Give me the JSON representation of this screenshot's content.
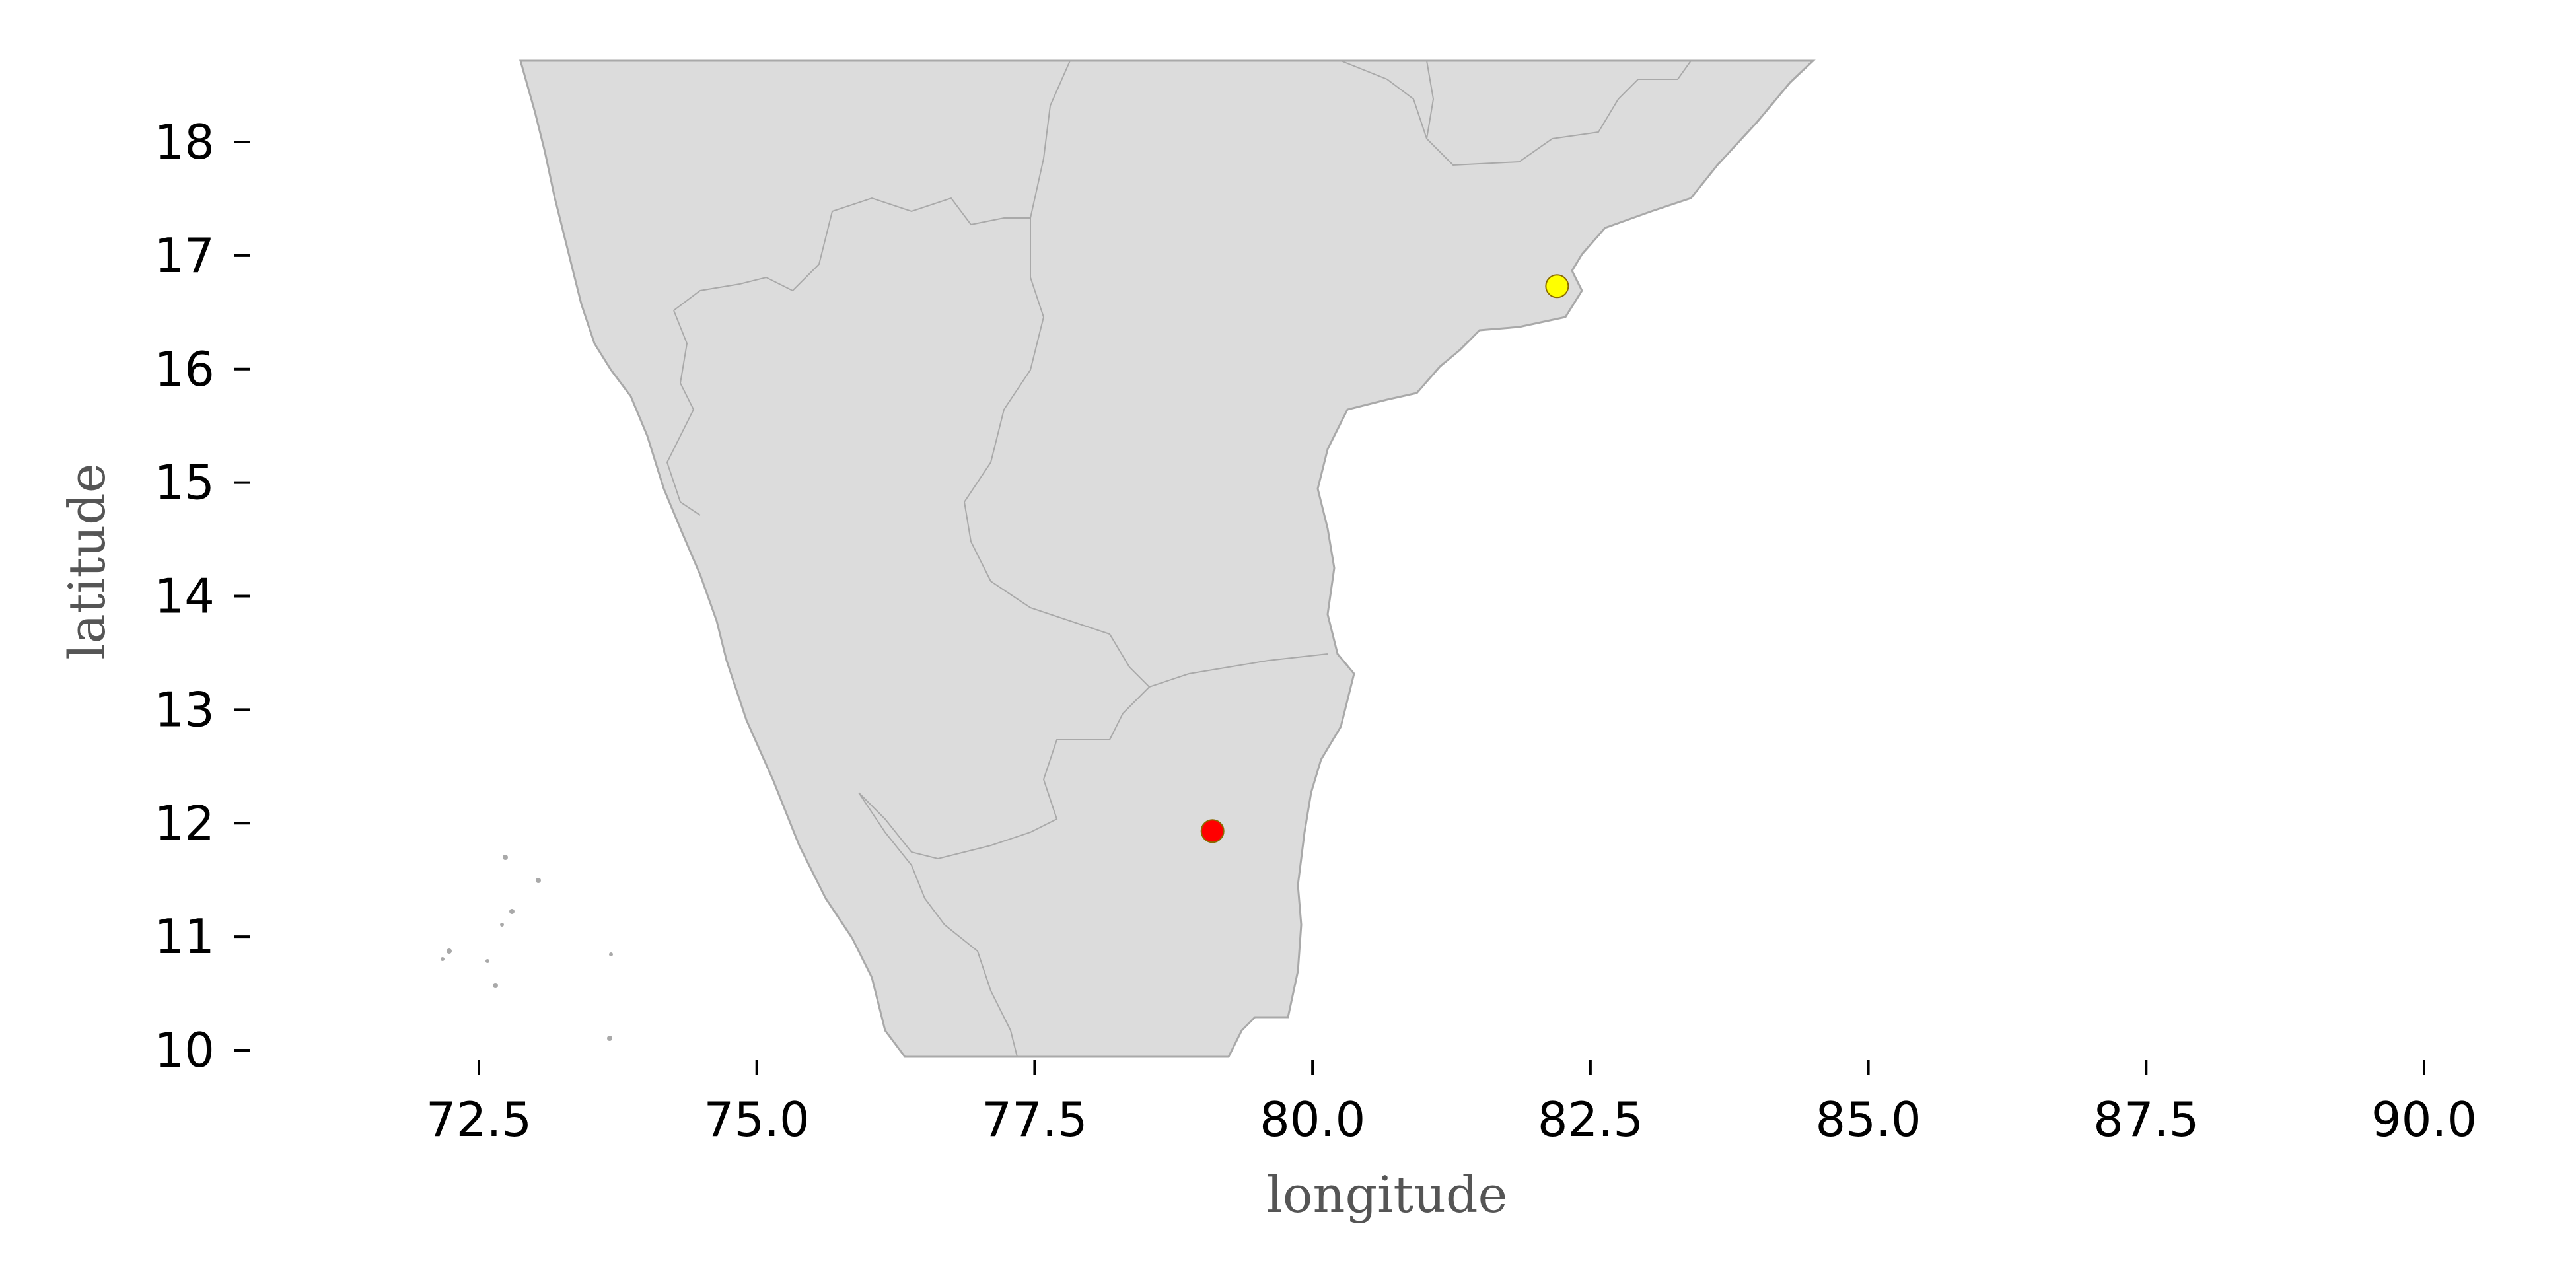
{
  "map": {
    "xlabel": "longitude",
    "ylabel": "latitude",
    "x_ticks": [
      "72.5",
      "75.0",
      "77.5",
      "80.0",
      "82.5",
      "85.0",
      "87.5",
      "90.0"
    ],
    "y_ticks": [
      "18",
      "17",
      "16",
      "15",
      "14",
      "13",
      "12",
      "11",
      "10"
    ],
    "xlim": [
      70.5,
      90.6
    ],
    "ylim": [
      9.93,
      18.72
    ],
    "land_color": "#dcdcdc",
    "border_color": "#a9a9a9",
    "markers": [
      {
        "name": "red-point",
        "lon": 79.1,
        "lat": 11.93,
        "color": "#ff0000"
      },
      {
        "name": "yellow-point",
        "lon": 82.2,
        "lat": 16.73,
        "color": "#ffff00"
      }
    ]
  }
}
